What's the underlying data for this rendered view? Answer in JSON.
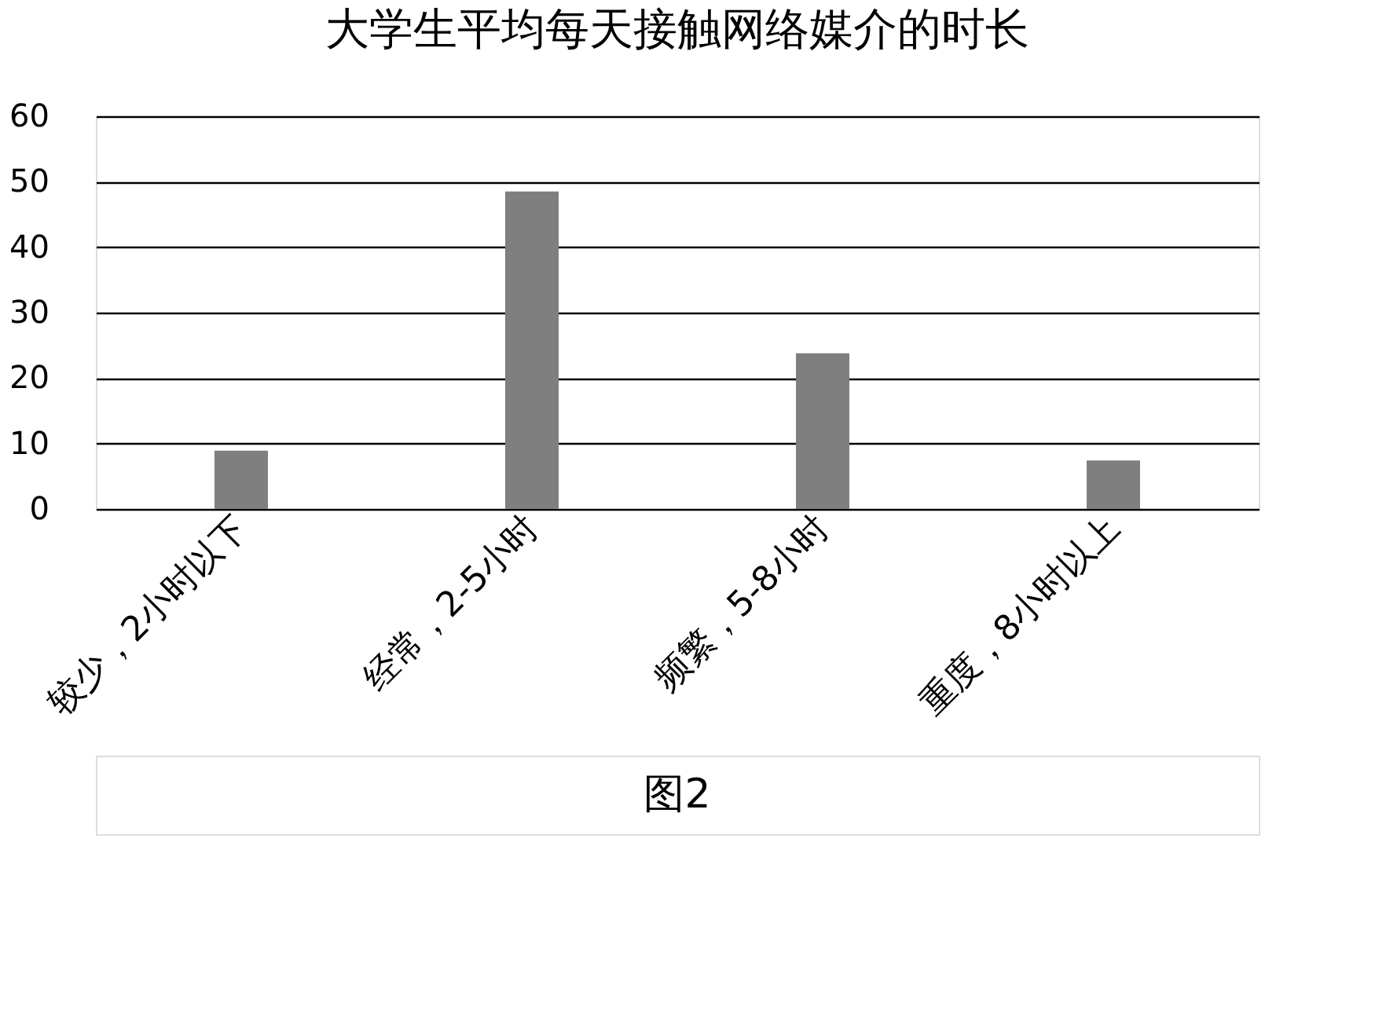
{
  "chart_data": {
    "type": "bar",
    "title": "大学生平均每天接触网络媒介的时长",
    "categories": [
      "较少，2小时以下",
      "经常，2-5小时",
      "频繁，5-8小时",
      "重度，8小时以上"
    ],
    "values": [
      8.9,
      48.5,
      23.8,
      7.4
    ],
    "color": "#7f7f7f",
    "ylim": [
      0,
      60
    ],
    "yticks": [
      0,
      10,
      20,
      30,
      40,
      50,
      60
    ],
    "grid": "y",
    "annotations": [
      "图2"
    ]
  }
}
